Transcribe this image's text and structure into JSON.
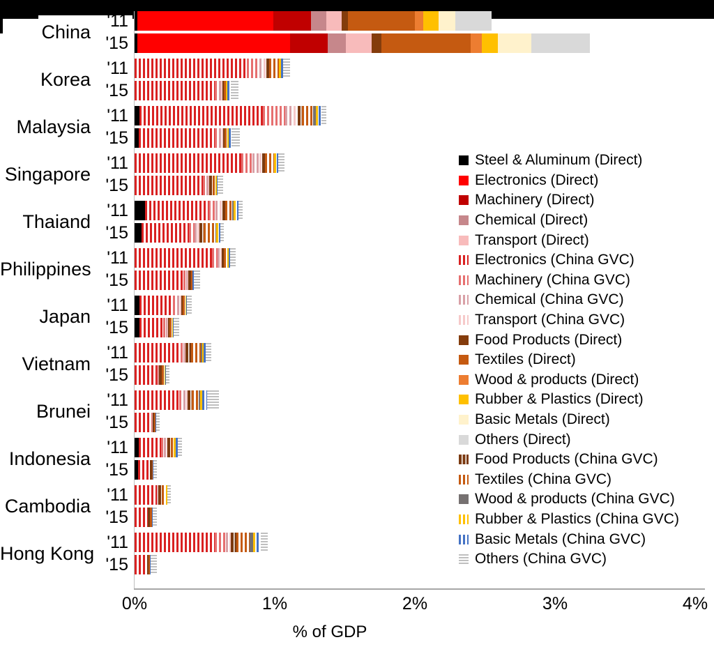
{
  "decor": {
    "banner_color": "#000000"
  },
  "axis": {
    "xlabel": "% of GDP",
    "ticks": [
      "0%",
      "1%",
      "2%",
      "3%",
      "4%"
    ]
  },
  "styles": {
    "steel_d": {
      "color": "#000000",
      "pattern": "solid"
    },
    "elec_d": {
      "color": "#ff0000",
      "pattern": "solid"
    },
    "mach_d": {
      "color": "#c00000",
      "pattern": "solid"
    },
    "chem_d": {
      "color": "#c6878b",
      "pattern": "solid"
    },
    "trans_d": {
      "color": "#f8bbbb",
      "pattern": "solid"
    },
    "elec_g": {
      "color": "#d92121",
      "pattern": "v"
    },
    "mach_g": {
      "color": "#e66f6f",
      "pattern": "v"
    },
    "chem_g": {
      "color": "#d9a0a6",
      "pattern": "v"
    },
    "trans_g": {
      "color": "#f6c9c9",
      "pattern": "v"
    },
    "food_d": {
      "color": "#843c0c",
      "pattern": "solid"
    },
    "text_d": {
      "color": "#c55a11",
      "pattern": "solid"
    },
    "wood_d": {
      "color": "#ed7d31",
      "pattern": "solid"
    },
    "rubber_d": {
      "color": "#ffc000",
      "pattern": "solid"
    },
    "basic_d": {
      "color": "#fff2cc",
      "pattern": "solid"
    },
    "others_d": {
      "color": "#d9d9d9",
      "pattern": "solid"
    },
    "food_g": {
      "color": "#7b3a10",
      "pattern": "vd"
    },
    "text_g": {
      "color": "#c55a11",
      "pattern": "v"
    },
    "wood_g": {
      "color": "#767171",
      "pattern": "solid"
    },
    "rubber_g": {
      "color": "#ffc000",
      "pattern": "v"
    },
    "basic_g": {
      "color": "#4472c4",
      "pattern": "v"
    },
    "others_g": {
      "color": "#bfbfbf",
      "pattern": "h"
    }
  },
  "legend": [
    {
      "key": "steel_d",
      "label": "Steel & Aluminum (Direct)"
    },
    {
      "key": "elec_d",
      "label": "Electronics (Direct)"
    },
    {
      "key": "mach_d",
      "label": "Machinery (Direct)"
    },
    {
      "key": "chem_d",
      "label": "Chemical (Direct)"
    },
    {
      "key": "trans_d",
      "label": "Transport (Direct)"
    },
    {
      "key": "elec_g",
      "label": "Electronics (China GVC)"
    },
    {
      "key": "mach_g",
      "label": "Machinery (China GVC)"
    },
    {
      "key": "chem_g",
      "label": "Chemical (China GVC)"
    },
    {
      "key": "trans_g",
      "label": "Transport (China GVC)"
    },
    {
      "key": "food_d",
      "label": "Food Products (Direct)"
    },
    {
      "key": "text_d",
      "label": "Textiles (Direct)"
    },
    {
      "key": "wood_d",
      "label": "Wood & products (Direct)"
    },
    {
      "key": "rubber_d",
      "label": "Rubber & Plastics (Direct)"
    },
    {
      "key": "basic_d",
      "label": "Basic Metals (Direct)"
    },
    {
      "key": "others_d",
      "label": "Others (Direct)"
    },
    {
      "key": "food_g",
      "label": "Food Products (China GVC)"
    },
    {
      "key": "text_g",
      "label": "Textiles (China GVC)"
    },
    {
      "key": "wood_g",
      "label": "Wood & products (China GVC)"
    },
    {
      "key": "rubber_g",
      "label": "Rubber & Plastics (China GVC)"
    },
    {
      "key": "basic_g",
      "label": "Basic Metals (China GVC)"
    },
    {
      "key": "others_g",
      "label": "Others (China GVC)"
    }
  ],
  "chart_data": {
    "type": "bar",
    "orientation": "horizontal-stacked",
    "title": "",
    "xlabel": "% of GDP",
    "x_ticks": [
      "0%",
      "1%",
      "2%",
      "3%",
      "4%"
    ],
    "xlim": [
      0,
      4
    ],
    "grid": false,
    "legend_position": "right-middle",
    "stack_order": [
      "steel_d",
      "elec_d",
      "mach_d",
      "chem_d",
      "trans_d",
      "elec_g",
      "mach_g",
      "chem_g",
      "trans_g",
      "food_d",
      "text_d",
      "wood_d",
      "rubber_d",
      "basic_d",
      "others_d",
      "food_g",
      "text_g",
      "wood_g",
      "rubber_g",
      "basic_g",
      "others_g"
    ],
    "units": "percent of GDP",
    "countries": [
      {
        "name": "China",
        "bars": [
          {
            "year": "'11",
            "total": 2.55,
            "segments": {
              "steel_d": 0.02,
              "elec_d": 0.97,
              "mach_d": 0.27,
              "chem_d": 0.11,
              "trans_d": 0.11,
              "food_d": 0.04,
              "text_d": 0.48,
              "wood_d": 0.06,
              "rubber_d": 0.11,
              "basic_d": 0.12,
              "others_d": 0.26
            }
          },
          {
            "year": "'15",
            "total": 3.25,
            "segments": {
              "steel_d": 0.02,
              "elec_d": 1.09,
              "mach_d": 0.27,
              "chem_d": 0.13,
              "trans_d": 0.18,
              "food_d": 0.07,
              "text_d": 0.64,
              "wood_d": 0.08,
              "rubber_d": 0.11,
              "basic_d": 0.24,
              "others_d": 0.42
            }
          }
        ]
      },
      {
        "name": "Korea",
        "bars": [
          {
            "year": "'11",
            "total": 1.11,
            "segments": {
              "elec_g": 0.8,
              "mach_g": 0.09,
              "chem_g": 0.03,
              "trans_g": 0.02,
              "food_g": 0.02,
              "text_g": 0.07,
              "rubber_g": 0.015,
              "basic_g": 0.015,
              "others_g": 0.05
            }
          },
          {
            "year": "'15",
            "total": 0.74,
            "segments": {
              "elec_g": 0.57,
              "mach_g": 0.03,
              "chem_g": 0.015,
              "trans_g": 0.01,
              "food_g": 0.01,
              "text_g": 0.015,
              "rubber_g": 0.01,
              "basic_g": 0.025,
              "others_g": 0.055
            }
          }
        ]
      },
      {
        "name": "Malaysia",
        "bars": [
          {
            "year": "'11",
            "total": 1.37,
            "segments": {
              "steel_d": 0.035,
              "elec_g": 0.88,
              "mach_g": 0.16,
              "chem_g": 0.06,
              "trans_g": 0.03,
              "food_g": 0.03,
              "text_g": 0.08,
              "wood_g": 0.02,
              "rubber_g": 0.02,
              "basic_g": 0.02,
              "others_g": 0.035
            }
          },
          {
            "year": "'15",
            "total": 0.75,
            "segments": {
              "steel_d": 0.03,
              "elec_g": 0.54,
              "mach_g": 0.03,
              "chem_g": 0.02,
              "trans_g": 0.01,
              "food_g": 0.01,
              "text_g": 0.02,
              "rubber_g": 0.01,
              "basic_g": 0.02,
              "others_g": 0.06
            }
          }
        ]
      },
      {
        "name": "Singapore",
        "bars": [
          {
            "year": "'11",
            "total": 1.07,
            "segments": {
              "elec_g": 0.76,
              "mach_g": 0.08,
              "chem_g": 0.05,
              "trans_g": 0.02,
              "food_g": 0.02,
              "text_g": 0.065,
              "rubber_g": 0.02,
              "basic_g": 0.01,
              "others_g": 0.045
            }
          },
          {
            "year": "'15",
            "total": 0.63,
            "segments": {
              "elec_g": 0.49,
              "mach_g": 0.02,
              "chem_g": 0.015,
              "trans_g": 0.005,
              "food_g": 0.025,
              "text_g": 0.02,
              "rubber_g": 0.01,
              "basic_g": 0.005,
              "others_g": 0.04
            }
          }
        ]
      },
      {
        "name": "Thaiand",
        "bars": [
          {
            "year": "'11",
            "total": 0.77,
            "segments": {
              "steel_d": 0.075,
              "elec_g": 0.45,
              "mach_g": 0.05,
              "chem_g": 0.03,
              "trans_g": 0.02,
              "food_g": 0.02,
              "text_g": 0.05,
              "wood_g": 0.01,
              "rubber_g": 0.025,
              "basic_g": 0.01,
              "others_g": 0.03
            }
          },
          {
            "year": "'15",
            "total": 0.635,
            "segments": {
              "steel_d": 0.05,
              "elec_g": 0.34,
              "mach_g": 0.04,
              "chem_g": 0.02,
              "trans_g": 0.015,
              "food_g": 0.03,
              "text_g": 0.08,
              "wood_g": 0.005,
              "rubber_g": 0.02,
              "basic_g": 0.01,
              "others_g": 0.025
            }
          }
        ]
      },
      {
        "name": "Philippines",
        "bars": [
          {
            "year": "'11",
            "total": 0.72,
            "segments": {
              "elec_g": 0.55,
              "mach_g": 0.04,
              "chem_g": 0.02,
              "trans_g": 0.01,
              "food_g": 0.015,
              "text_g": 0.025,
              "rubber_g": 0.01,
              "basic_g": 0.01,
              "others_g": 0.04
            }
          },
          {
            "year": "'15",
            "total": 0.47,
            "segments": {
              "elec_g": 0.35,
              "mach_g": 0.02,
              "chem_g": 0.01,
              "trans_g": 0.005,
              "food_g": 0.02,
              "text_g": 0.01,
              "basic_g": 0.01,
              "others_g": 0.045
            }
          }
        ]
      },
      {
        "name": "Japan",
        "bars": [
          {
            "year": "'11",
            "total": 0.41,
            "segments": {
              "steel_d": 0.035,
              "elec_g": 0.24,
              "mach_g": 0.03,
              "chem_g": 0.02,
              "trans_g": 0.01,
              "food_g": 0.01,
              "text_g": 0.02,
              "rubber_g": 0.005,
              "basic_g": 0.005,
              "others_g": 0.035
            }
          },
          {
            "year": "'15",
            "total": 0.32,
            "segments": {
              "steel_d": 0.035,
              "elec_g": 0.17,
              "mach_g": 0.02,
              "chem_g": 0.01,
              "trans_g": 0.005,
              "food_g": 0.01,
              "text_g": 0.02,
              "rubber_g": 0.005,
              "basic_g": 0.005,
              "others_g": 0.04
            }
          }
        ]
      },
      {
        "name": "Vietnam",
        "bars": [
          {
            "year": "'11",
            "total": 0.55,
            "segments": {
              "elec_g": 0.33,
              "mach_g": 0.02,
              "chem_g": 0.01,
              "trans_g": 0.005,
              "food_g": 0.04,
              "text_g": 0.07,
              "wood_g": 0.01,
              "rubber_g": 0.01,
              "basic_g": 0.015,
              "others_g": 0.04
            }
          },
          {
            "year": "'15",
            "total": 0.25,
            "segments": {
              "elec_g": 0.16,
              "mach_g": 0.01,
              "chem_g": 0.005,
              "food_g": 0.02,
              "text_g": 0.02,
              "rubber_g": 0.005,
              "basic_g": 0.005,
              "others_g": 0.025
            }
          }
        ]
      },
      {
        "name": "Brunei",
        "bars": [
          {
            "year": "'11",
            "total": 0.6,
            "segments": {
              "elec_g": 0.32,
              "mach_g": 0.03,
              "chem_g": 0.02,
              "trans_g": 0.01,
              "food_g": 0.03,
              "text_g": 0.05,
              "wood_g": 0.01,
              "rubber_g": 0.015,
              "basic_g": 0.035,
              "others_g": 0.08
            }
          },
          {
            "year": "'15",
            "total": 0.18,
            "segments": {
              "elec_g": 0.12,
              "mach_g": 0.005,
              "chem_g": 0.005,
              "food_g": 0.01,
              "text_g": 0.01,
              "basic_g": 0.005,
              "others_g": 0.025
            }
          }
        ]
      },
      {
        "name": "Indonesia",
        "bars": [
          {
            "year": "'11",
            "total": 0.34,
            "segments": {
              "steel_d": 0.03,
              "elec_g": 0.16,
              "mach_g": 0.02,
              "chem_g": 0.02,
              "trans_g": 0.005,
              "food_g": 0.025,
              "text_g": 0.02,
              "rubber_g": 0.015,
              "basic_g": 0.015,
              "others_g": 0.03
            }
          },
          {
            "year": "'15",
            "total": 0.16,
            "segments": {
              "steel_d": 0.025,
              "elec_g": 0.085,
              "food_g": 0.015,
              "text_g": 0.005,
              "basic_g": 0.005,
              "others_g": 0.025
            }
          }
        ]
      },
      {
        "name": "Cambodia",
        "bars": [
          {
            "year": "'11",
            "total": 0.26,
            "segments": {
              "elec_g": 0.16,
              "chem_g": 0.005,
              "trans_g": 0.005,
              "food_g": 0.025,
              "text_g": 0.03,
              "rubber_g": 0.01,
              "others_g": 0.025
            }
          },
          {
            "year": "'15",
            "total": 0.16,
            "segments": {
              "elec_g": 0.095,
              "food_g": 0.015,
              "text_g": 0.015,
              "basic_g": 0.005,
              "others_g": 0.03
            }
          }
        ]
      },
      {
        "name": "Hong Kong",
        "bars": [
          {
            "year": "'11",
            "total": 0.95,
            "segments": {
              "elec_g": 0.57,
              "mach_g": 0.08,
              "chem_g": 0.025,
              "trans_g": 0.01,
              "food_g": 0.04,
              "text_g": 0.095,
              "wood_g": 0.025,
              "rubber_g": 0.025,
              "basic_g": 0.03,
              "others_g": 0.05
            }
          },
          {
            "year": "'15",
            "total": 0.16,
            "segments": {
              "elec_g": 0.09,
              "food_g": 0.01,
              "text_g": 0.01,
              "basic_g": 0.005,
              "others_g": 0.045
            }
          }
        ]
      }
    ]
  }
}
